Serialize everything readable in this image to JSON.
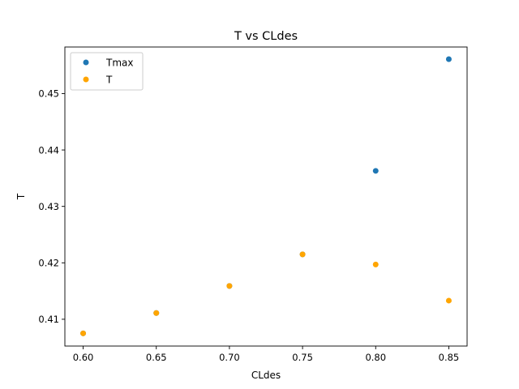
{
  "chart_data": {
    "type": "scatter",
    "title": "T vs CLdes",
    "xlabel": "CLdes",
    "ylabel": "T",
    "xlim": [
      0.5875,
      0.8625
    ],
    "ylim": [
      0.40525,
      0.45825
    ],
    "xticks": [
      0.6,
      0.65,
      0.7,
      0.75,
      0.8,
      0.85
    ],
    "xtick_labels": [
      "0.60",
      "0.65",
      "0.70",
      "0.75",
      "0.80",
      "0.85"
    ],
    "yticks": [
      0.41,
      0.42,
      0.43,
      0.44,
      0.45
    ],
    "ytick_labels": [
      "0.41",
      "0.42",
      "0.43",
      "0.44",
      "0.45"
    ],
    "grid": false,
    "legend_position": "top-left",
    "series": [
      {
        "name": "Tmax",
        "color": "#1f77b4",
        "x": [
          0.6,
          0.65,
          0.7,
          0.75,
          0.8,
          0.85
        ],
        "y": [
          0.4075,
          0.4111,
          0.4159,
          0.4215,
          0.4363,
          0.4561
        ]
      },
      {
        "name": "T",
        "color": "#ffa500",
        "x": [
          0.6,
          0.65,
          0.7,
          0.75,
          0.8,
          0.85
        ],
        "y": [
          0.4075,
          0.4111,
          0.4159,
          0.4215,
          0.4197,
          0.4133
        ]
      }
    ]
  }
}
